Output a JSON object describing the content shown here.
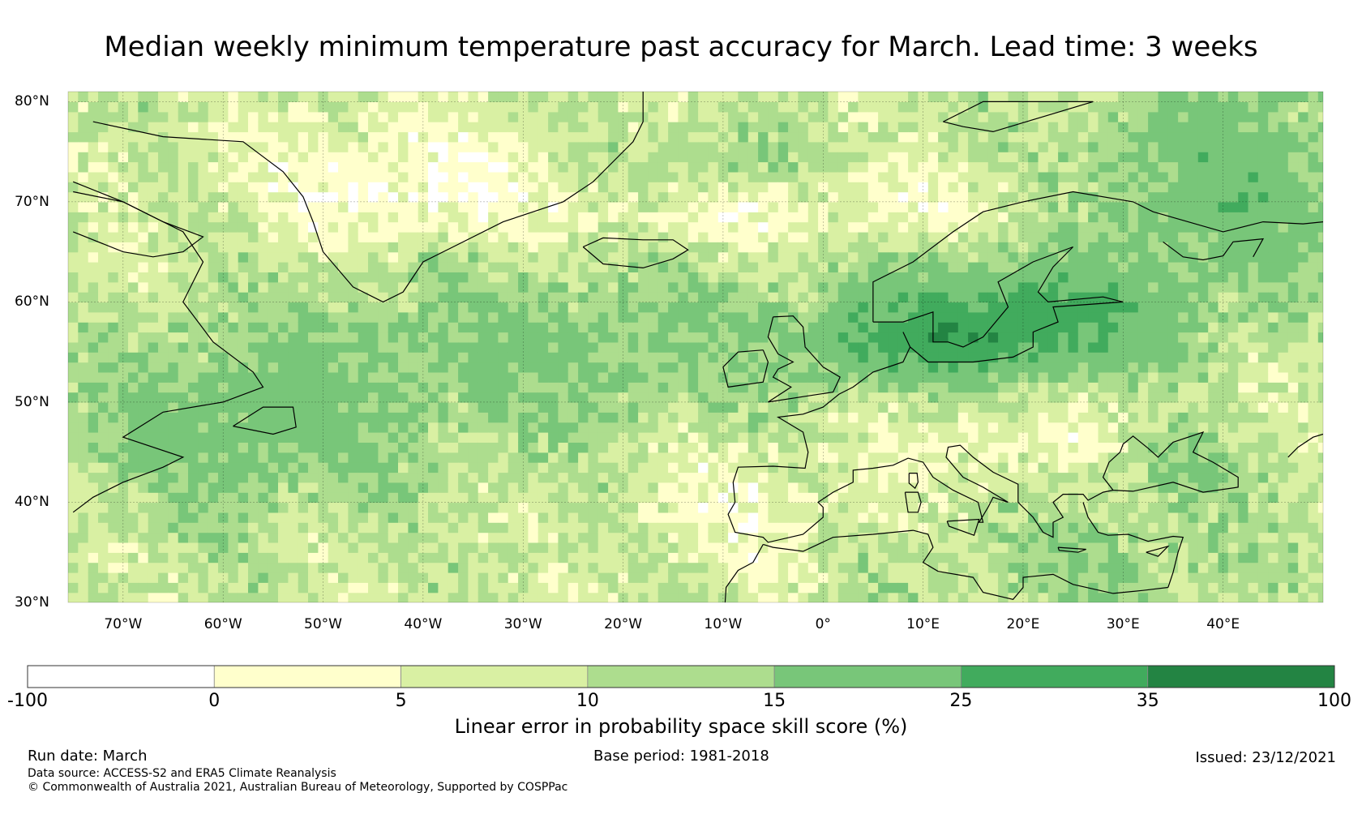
{
  "title": "Median weekly minimum temperature past accuracy for March. Lead time: 3 weeks",
  "map": {
    "lat_labels": [
      "80°N",
      "70°N",
      "60°N",
      "50°N",
      "40°N",
      "30°N"
    ],
    "lon_labels": [
      "70°W",
      "60°W",
      "50°W",
      "40°W",
      "30°W",
      "20°W",
      "10°W",
      "0°",
      "10°E",
      "20°E",
      "30°E",
      "40°E"
    ],
    "lat_range": [
      30,
      81
    ],
    "lon_range": [
      -75.5,
      50
    ]
  },
  "colorbar": {
    "label": "Linear error in probability space skill score (%)",
    "bounds": [
      "-100",
      "0",
      "5",
      "10",
      "15",
      "25",
      "35",
      "100"
    ],
    "colors": [
      "#ffffff",
      "#ffffcc",
      "#d9f0a3",
      "#addd8e",
      "#78c679",
      "#41ab5d",
      "#238443"
    ]
  },
  "footer": {
    "run_date": "Run date: March",
    "base_period": "Base period: 1981-2018",
    "issued": "Issued: 23/12/2021",
    "data_source": "Data source: ACCESS-S2 and ERA5 Climate Reanalysis",
    "copyright": "© Commonwealth of Australia 2021, Australian Bureau of Meteorology, Supported by COSPPac"
  }
}
